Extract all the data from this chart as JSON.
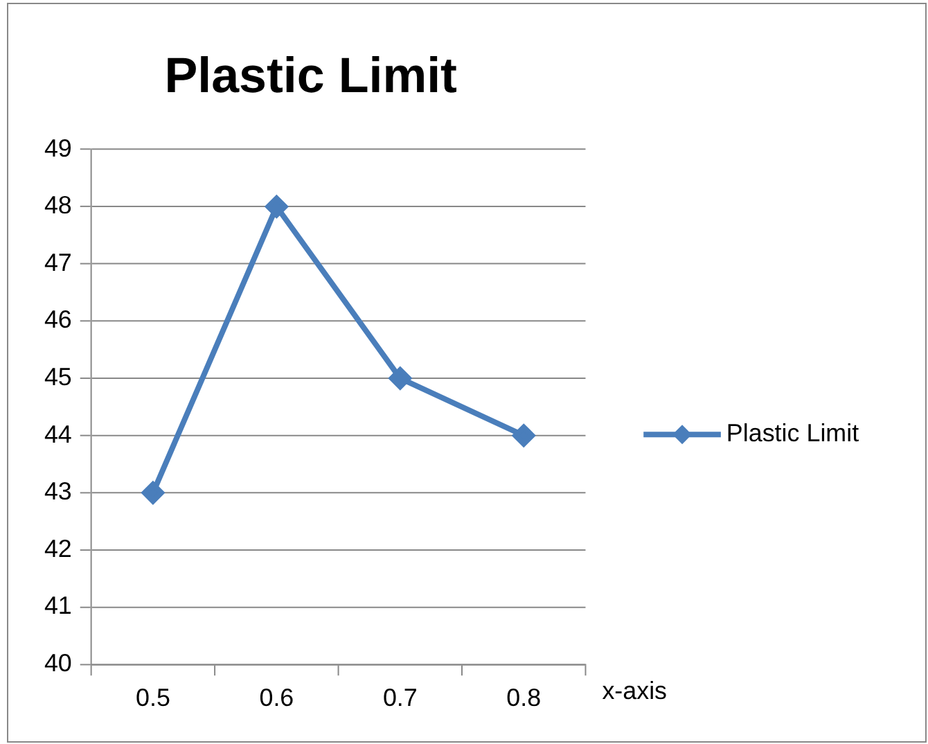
{
  "chart_data": {
    "type": "line",
    "title": "Plastic Limit",
    "xlabel": "x-axis",
    "categories": [
      "0.5",
      "0.6",
      "0.7",
      "0.8"
    ],
    "series": [
      {
        "name": "Plastic Limit",
        "color": "#4a7ebb",
        "values": [
          43,
          48,
          45,
          44
        ]
      }
    ],
    "ylim": [
      40,
      49
    ],
    "yticks": [
      40,
      41,
      42,
      43,
      44,
      45,
      46,
      47,
      48,
      49
    ],
    "grid": "y",
    "legend": "right",
    "marker": "diamond",
    "line_style": "solid"
  }
}
